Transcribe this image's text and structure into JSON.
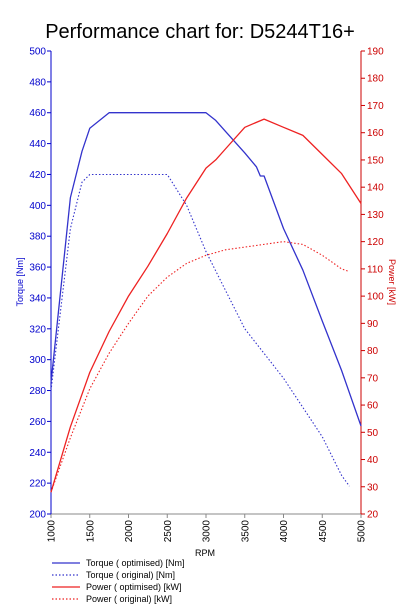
{
  "chart_data": {
    "type": "line",
    "title": "Performance chart for: D5244T16+",
    "xlabel": "RPM",
    "ylabel_left": "Torque [Nm]",
    "ylabel_right": "Power [kW]",
    "xlim": [
      1000,
      5000
    ],
    "ylim_left": [
      200,
      500
    ],
    "ylim_right": [
      20,
      190
    ],
    "x_ticks": [
      1000,
      1500,
      2000,
      2500,
      3000,
      3500,
      4000,
      4500,
      5000
    ],
    "y_left_ticks": [
      200,
      220,
      240,
      260,
      280,
      300,
      320,
      340,
      360,
      380,
      400,
      420,
      440,
      460,
      480,
      500
    ],
    "y_right_ticks": [
      20,
      30,
      40,
      50,
      60,
      70,
      80,
      90,
      100,
      110,
      120,
      130,
      140,
      150,
      160,
      170,
      180,
      190
    ],
    "grid": false,
    "legend_position": "bottom-left",
    "colors": {
      "torque": "#3333cc",
      "power": "#ee2222",
      "axis_left": "#0000cc",
      "axis_right": "#cc0000"
    },
    "series": [
      {
        "name": "Torque ( optimised) [Nm]",
        "axis": "left",
        "style": "solid",
        "color": "#3333cc",
        "x": [
          1000,
          1250,
          1400,
          1500,
          1750,
          2000,
          2500,
          3000,
          3125,
          3250,
          3500,
          3650,
          3700,
          3750,
          4000,
          4250,
          4500,
          4750,
          5000
        ],
        "y": [
          285,
          405,
          435,
          450,
          460,
          460,
          460,
          460,
          455,
          448,
          434,
          425,
          419,
          419,
          385,
          358,
          325,
          293,
          257
        ]
      },
      {
        "name": "Torque ( original) [Nm]",
        "axis": "left",
        "style": "dotted",
        "color": "#3333cc",
        "x": [
          1000,
          1250,
          1400,
          1500,
          2000,
          2500,
          2750,
          3000,
          3500,
          4000,
          4500,
          4750,
          4850
        ],
        "y": [
          280,
          385,
          415,
          420,
          420,
          420,
          400,
          370,
          320,
          288,
          250,
          225,
          218
        ]
      },
      {
        "name": "Power ( optimised) [kW]",
        "axis": "right",
        "style": "solid",
        "color": "#ee2222",
        "x": [
          1000,
          1250,
          1500,
          1750,
          2000,
          2250,
          2500,
          2750,
          3000,
          3125,
          3250,
          3500,
          3750,
          4000,
          4250,
          4500,
          4750,
          5000
        ],
        "y": [
          28,
          52,
          72,
          87,
          100,
          111,
          123,
          136,
          147,
          150,
          154,
          162,
          165,
          162,
          159,
          152,
          145,
          134
        ]
      },
      {
        "name": "Power ( original) [kW]",
        "axis": "right",
        "style": "dotted",
        "color": "#ee2222",
        "x": [
          1000,
          1250,
          1500,
          1750,
          2000,
          2250,
          2500,
          2750,
          3000,
          3250,
          3500,
          4000,
          4250,
          4500,
          4750,
          4850
        ],
        "y": [
          28,
          48,
          66,
          79,
          90,
          100,
          107,
          112,
          115,
          117,
          118,
          120,
          119,
          115,
          110,
          109
        ]
      }
    ]
  }
}
